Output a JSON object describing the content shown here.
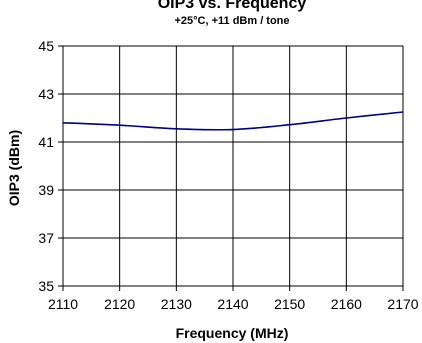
{
  "chart_data": {
    "type": "line",
    "title": "OIP3 vs. Frequency",
    "subtitle": "+25°C, +11 dBm / tone",
    "xlabel": "Frequency (MHz)",
    "ylabel": "OIP3 (dBm)",
    "xlim": [
      2110,
      2170
    ],
    "ylim": [
      35,
      45
    ],
    "xticks": [
      2110,
      2120,
      2130,
      2140,
      2150,
      2160,
      2170
    ],
    "yticks": [
      35,
      37,
      39,
      41,
      43,
      45
    ],
    "grid": true,
    "series": [
      {
        "color": "#000080",
        "x": [
          2110,
          2120,
          2130,
          2140,
          2150,
          2160,
          2170
        ],
        "y": [
          41.8,
          41.7,
          41.55,
          41.52,
          41.72,
          42.0,
          42.25
        ]
      }
    ]
  }
}
